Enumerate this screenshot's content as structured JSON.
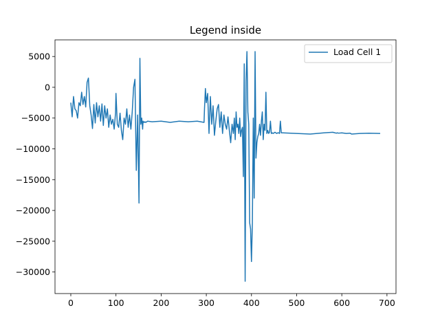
{
  "chart_data": {
    "type": "line",
    "title": "Legend inside",
    "xlabel": "",
    "ylabel": "",
    "xlim": [
      -35,
      720
    ],
    "ylim": [
      -33500,
      7700
    ],
    "xticks": [
      0,
      100,
      200,
      300,
      400,
      500,
      600,
      700
    ],
    "yticks": [
      5000,
      0,
      -5000,
      -10000,
      -15000,
      -20000,
      -25000,
      -30000
    ],
    "grid": false,
    "legend_position": "top-right",
    "color": "#1f77b4",
    "series": [
      {
        "name": "Load Cell 1",
        "x": [
          0,
          3,
          6,
          9,
          12,
          15,
          18,
          21,
          24,
          27,
          30,
          33,
          36,
          39,
          42,
          45,
          48,
          51,
          54,
          57,
          60,
          63,
          66,
          69,
          72,
          75,
          78,
          81,
          84,
          87,
          90,
          93,
          96,
          99,
          100,
          103,
          106,
          109,
          112,
          115,
          118,
          121,
          124,
          127,
          130,
          133,
          136,
          139,
          142,
          145,
          148,
          151,
          153,
          155,
          157,
          159,
          160,
          162,
          164,
          166,
          168,
          170,
          180,
          200,
          220,
          240,
          260,
          280,
          295,
          296,
          298,
          300,
          303,
          306,
          309,
          312,
          315,
          318,
          321,
          324,
          327,
          330,
          333,
          336,
          339,
          342,
          345,
          348,
          351,
          354,
          357,
          360,
          362,
          364,
          366,
          368,
          370,
          372,
          374,
          376,
          378,
          380,
          382,
          384,
          386,
          388,
          390,
          392,
          394,
          396,
          398,
          400,
          402,
          404,
          406,
          408,
          410,
          412,
          414,
          416,
          418,
          420,
          422,
          424,
          426,
          428,
          430,
          432,
          434,
          436,
          438,
          440,
          442,
          444,
          446,
          448,
          450,
          452,
          454,
          456,
          458,
          460,
          462,
          464,
          466,
          470,
          500,
          530,
          560,
          580,
          585,
          588,
          590,
          593,
          600,
          610,
          618,
          622,
          640,
          660,
          685
        ],
        "y": [
          -2500,
          -4800,
          -1500,
          -3500,
          -3800,
          -5000,
          -2500,
          -3000,
          -800,
          -2800,
          -1500,
          -3200,
          800,
          1500,
          -3000,
          -4500,
          -6700,
          -2800,
          -5800,
          -2500,
          -4800,
          -3000,
          -5500,
          -2700,
          -6200,
          -3000,
          -5000,
          -3500,
          -6500,
          -4500,
          -6000,
          -5200,
          -6800,
          -4200,
          -1000,
          -6000,
          -6500,
          -4200,
          -7000,
          -8500,
          -5000,
          -6000,
          -3500,
          -6500,
          -4500,
          -6800,
          -4000,
          0,
          1300,
          -13500,
          -4500,
          -18800,
          4700,
          -6000,
          -5000,
          -6800,
          -5500,
          -5700,
          -5600,
          -5700,
          -5600,
          -5500,
          -5600,
          -5500,
          -5700,
          -5500,
          -5600,
          -5500,
          -5700,
          -3500,
          -200,
          -2500,
          -1000,
          -7500,
          -1500,
          -6000,
          -3000,
          -7800,
          -5500,
          -3500,
          -2800,
          -6500,
          -4000,
          -7500,
          -4500,
          -6000,
          -6800,
          -4800,
          -7000,
          -9000,
          -6000,
          -7500,
          -5000,
          -8500,
          -4000,
          -6500,
          -6000,
          -7500,
          -5000,
          -8000,
          -7000,
          -6500,
          -14500,
          3800,
          -31500,
          1000,
          5800,
          -4000,
          -6000,
          -22000,
          -23000,
          -28300,
          -22000,
          -5000,
          -18000,
          5800,
          -11500,
          -9000,
          -8000,
          -7500,
          -6000,
          -7800,
          -5500,
          -4000,
          -8500,
          -6000,
          -7000,
          -800,
          -7500,
          -7000,
          -7500,
          -7300,
          -5500,
          -7500,
          -7400,
          -7500,
          -7400,
          -7300,
          -7400,
          -7500,
          -7400,
          -7400,
          -7500,
          -5500,
          -7400,
          -7400,
          -7500,
          -7600,
          -7400,
          -7300,
          -7400,
          -7450,
          -7400,
          -7450,
          -7400,
          -7500,
          -7450,
          -7600,
          -7500,
          -7450,
          -7500
        ]
      }
    ]
  }
}
